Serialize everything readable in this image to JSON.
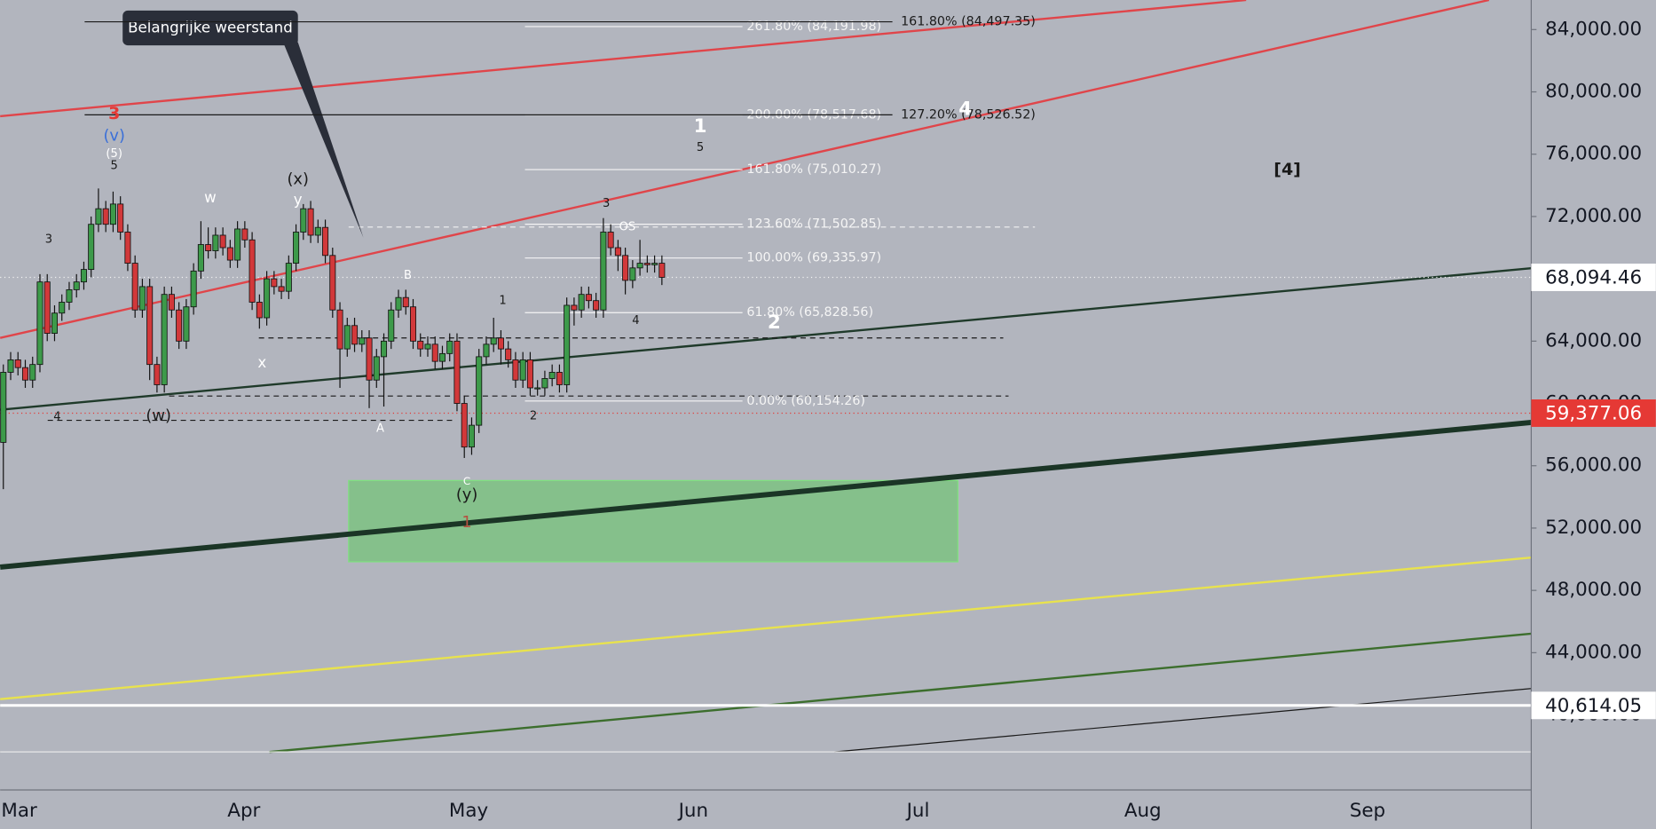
{
  "chart_data": {
    "type": "candlestick",
    "categories": [
      "Mar",
      "Apr",
      "May",
      "Jun",
      "Jul",
      "Aug",
      "Sep"
    ],
    "open": [
      57500,
      62000,
      62800,
      62300,
      61500,
      62500,
      67800,
      64500,
      65800,
      66500,
      67300,
      67800,
      68600,
      71500,
      72500,
      71500,
      72800,
      71000,
      69000,
      66000,
      67500,
      62500,
      61200,
      67000,
      66000,
      64000,
      66200,
      68500,
      70200,
      69800,
      70800,
      70000,
      69200,
      71200,
      70500,
      66500,
      65500,
      68000,
      67500,
      67200,
      69000,
      71000,
      72500,
      70800,
      71300,
      69500,
      66000,
      63500,
      65000,
      63800,
      64200,
      61500,
      63000,
      64000,
      66000,
      66800,
      66200,
      64000,
      63500,
      63800,
      62700,
      63200,
      64000,
      60000,
      57200,
      58600,
      63000,
      63800,
      64200,
      63500,
      62800,
      61500,
      62800,
      61000,
      61000,
      61600,
      62000,
      61200,
      66300,
      66000,
      67000,
      66600,
      66000,
      71000,
      70000,
      69500,
      67900,
      68700,
      69000,
      68900,
      69000
    ],
    "high": [
      62500,
      63300,
      63300,
      62800,
      63000,
      68300,
      68300,
      66300,
      67000,
      67800,
      68300,
      69100,
      72000,
      73800,
      73000,
      73600,
      73300,
      71500,
      69500,
      68000,
      68000,
      63000,
      67500,
      67500,
      66500,
      66700,
      69000,
      71700,
      71300,
      71300,
      71300,
      70500,
      71700,
      71700,
      71000,
      67000,
      68500,
      68500,
      68000,
      69500,
      71500,
      72800,
      73000,
      71800,
      71800,
      70000,
      66500,
      65500,
      65500,
      64700,
      64700,
      63500,
      64500,
      66500,
      67300,
      67300,
      66700,
      64500,
      64300,
      64300,
      63700,
      64500,
      64500,
      60500,
      59100,
      63500,
      64300,
      65500,
      64700,
      64000,
      63300,
      63300,
      63300,
      61500,
      62100,
      62500,
      62500,
      66800,
      66800,
      67500,
      67500,
      67100,
      71900,
      71500,
      70500,
      70000,
      69200,
      70500,
      69500,
      69500,
      69500
    ],
    "low": [
      54500,
      61500,
      61800,
      61000,
      61000,
      62000,
      64000,
      64000,
      65300,
      66000,
      66800,
      67300,
      68100,
      71000,
      71000,
      71000,
      70500,
      68500,
      65500,
      65500,
      61500,
      60700,
      60700,
      65500,
      63500,
      63500,
      65700,
      68000,
      69300,
      69300,
      69500,
      68700,
      68700,
      70000,
      66000,
      64800,
      65000,
      67000,
      66700,
      66700,
      68500,
      70500,
      70300,
      70300,
      69000,
      65500,
      61000,
      63000,
      63300,
      63300,
      59700,
      61000,
      59800,
      63500,
      65500,
      65700,
      63500,
      63000,
      63000,
      62200,
      62200,
      62700,
      59500,
      56500,
      56700,
      58100,
      62500,
      63300,
      62500,
      62300,
      61000,
      61000,
      60500,
      60500,
      60500,
      61100,
      60700,
      60700,
      65000,
      65500,
      66100,
      65500,
      65500,
      69500,
      68500,
      67000,
      67400,
      68200,
      68400,
      68400,
      67600
    ],
    "close": [
      62000,
      62800,
      62300,
      61500,
      62500,
      67800,
      64500,
      65800,
      66500,
      67300,
      67800,
      68600,
      71500,
      72500,
      71500,
      72800,
      71000,
      69000,
      66000,
      67500,
      62500,
      61200,
      67000,
      66000,
      64000,
      66200,
      68500,
      70200,
      69800,
      70800,
      70000,
      69200,
      71200,
      70500,
      66500,
      65500,
      68000,
      67500,
      67200,
      69000,
      71000,
      72500,
      70800,
      71300,
      69500,
      66000,
      63500,
      65000,
      63800,
      64200,
      61500,
      63000,
      64000,
      66000,
      66800,
      66200,
      64000,
      63500,
      63800,
      62700,
      63200,
      64000,
      60000,
      57200,
      58600,
      63000,
      63800,
      64200,
      63500,
      62800,
      61500,
      62800,
      61000,
      61000,
      61600,
      62000,
      61200,
      66300,
      66000,
      67000,
      66600,
      66000,
      71000,
      70000,
      69500,
      67900,
      68700,
      69000,
      68900,
      69000,
      68094
    ],
    "up_color": "#3d9a4a",
    "down_color": "#d2383a",
    "ylim": [
      35190,
      85898
    ],
    "yticks": [
      {
        "value": 84000,
        "label": "84,000.00"
      },
      {
        "value": 80000,
        "label": "80,000.00"
      },
      {
        "value": 76000,
        "label": "76,000.00"
      },
      {
        "value": 72000,
        "label": "72,000.00"
      },
      {
        "value": 68000,
        "label": "68,000.00"
      },
      {
        "value": 64000,
        "label": "64,000.00"
      },
      {
        "value": 60000,
        "label": "60,000.00"
      },
      {
        "value": 56000,
        "label": "56,000.00"
      },
      {
        "value": 52000,
        "label": "52,000.00"
      },
      {
        "value": 48000,
        "label": "48,000.00"
      },
      {
        "value": 44000,
        "label": "44,000.00"
      },
      {
        "value": 40000,
        "label": "40,000.00"
      }
    ],
    "fib_a": [
      {
        "value": 84191.98,
        "label": "261.80% (84,191.98)"
      },
      {
        "value": 78517.68,
        "label": "200.00% (78,517.68)"
      },
      {
        "value": 75010.27,
        "label": "161.80% (75,010.27)"
      },
      {
        "value": 71502.85,
        "label": "123.60% (71,502.85)"
      },
      {
        "value": 69335.97,
        "label": "100.00% (69,335.97)"
      },
      {
        "value": 65828.56,
        "label": "61.80% (65,828.56)"
      },
      {
        "value": 60154.26,
        "label": "0.00% (60,154.26)"
      }
    ],
    "fib_b": [
      {
        "value": 84497.35,
        "label": "161.80% (84,497.35)"
      },
      {
        "value": 78526.52,
        "label": "127.20% (78,526.52)"
      }
    ],
    "price_labels": [
      {
        "value": 68094.46,
        "label": "68,094.46"
      },
      {
        "value": 59377.06,
        "label": "59,377.06"
      },
      {
        "value": 40614.05,
        "label": "40,614.05"
      }
    ],
    "wave_labels": [
      "3",
      "(v)",
      "(5)",
      "5",
      "3",
      "4",
      "w",
      "(x)",
      "y",
      "x",
      "(w)",
      "B",
      "A",
      "C",
      "(y)",
      "1",
      "1",
      "2",
      "3",
      "OS",
      "4",
      "1",
      "5",
      "2",
      "4",
      "[4]"
    ],
    "callout": "Belangrijke weerstand"
  }
}
